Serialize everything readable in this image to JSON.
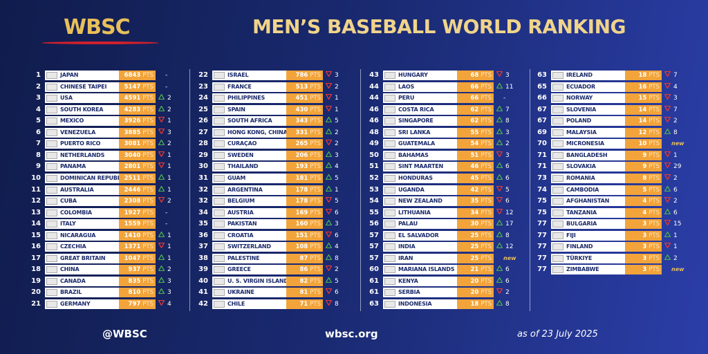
{
  "header": {
    "logo": "WBSC",
    "title": "MEN’S BASEBALL WORLD RANKING"
  },
  "pts_label": "PTS",
  "trend_colors": {
    "up": "#4caf50",
    "down": "#e53935"
  },
  "table": {
    "columns": [
      {
        "rows": [
          {
            "rank": 1,
            "country": "JAPAN",
            "points": 6843,
            "change": "-"
          },
          {
            "rank": 2,
            "country": "CHINESE TAIPEI",
            "points": 5147,
            "change": "-"
          },
          {
            "rank": 3,
            "country": "USA",
            "points": 4591,
            "trend": "up",
            "change": 2
          },
          {
            "rank": 4,
            "country": "SOUTH KOREA",
            "points": 4283,
            "trend": "up",
            "change": 2
          },
          {
            "rank": 5,
            "country": "MEXICO",
            "points": 3926,
            "trend": "down",
            "change": 1
          },
          {
            "rank": 6,
            "country": "VENEZUELA",
            "points": 3885,
            "trend": "down",
            "change": 3
          },
          {
            "rank": 7,
            "country": "PUERTO RICO",
            "points": 3081,
            "trend": "up",
            "change": 2
          },
          {
            "rank": 8,
            "country": "NETHERLANDS",
            "points": 3040,
            "trend": "down",
            "change": 1
          },
          {
            "rank": 9,
            "country": "PANAMA",
            "points": 2801,
            "trend": "down",
            "change": 1
          },
          {
            "rank": 10,
            "country": "DOMINICAN REPUBLIC",
            "points": 2511,
            "trend": "up",
            "change": 1
          },
          {
            "rank": 11,
            "country": "AUSTRALIA",
            "points": 2446,
            "trend": "up",
            "change": 1
          },
          {
            "rank": 12,
            "country": "CUBA",
            "points": 2308,
            "trend": "down",
            "change": 2
          },
          {
            "rank": 13,
            "country": "COLOMBIA",
            "points": 1927,
            "change": "-"
          },
          {
            "rank": 14,
            "country": "ITALY",
            "points": 1559,
            "change": "-"
          },
          {
            "rank": 15,
            "country": "NICARAGUA",
            "points": 1410,
            "trend": "up",
            "change": 1
          },
          {
            "rank": 16,
            "country": "CZECHIA",
            "points": 1371,
            "trend": "down",
            "change": 1
          },
          {
            "rank": 17,
            "country": "GREAT BRITAIN",
            "points": 1047,
            "trend": "up",
            "change": 1
          },
          {
            "rank": 18,
            "country": "CHINA",
            "points": 937,
            "trend": "up",
            "change": 2
          },
          {
            "rank": 19,
            "country": "CANADA",
            "points": 835,
            "trend": "up",
            "change": 3
          },
          {
            "rank": 20,
            "country": "BRAZIL",
            "points": 810,
            "trend": "up",
            "change": 3
          },
          {
            "rank": 21,
            "country": "GERMANY",
            "points": 797,
            "trend": "down",
            "change": 4
          }
        ]
      },
      {
        "rows": [
          {
            "rank": 22,
            "country": "ISRAEL",
            "points": 786,
            "trend": "down",
            "change": 3
          },
          {
            "rank": 23,
            "country": "FRANCE",
            "points": 513,
            "trend": "down",
            "change": 2
          },
          {
            "rank": 24,
            "country": "PHILIPPINES",
            "points": 451,
            "trend": "down",
            "change": 1
          },
          {
            "rank": 25,
            "country": "SPAIN",
            "points": 430,
            "trend": "down",
            "change": 1
          },
          {
            "rank": 26,
            "country": "SOUTH AFRICA",
            "points": 343,
            "trend": "up",
            "change": 5
          },
          {
            "rank": 27,
            "country": "HONG KONG, CHINA",
            "points": 331,
            "trend": "up",
            "change": 2
          },
          {
            "rank": 28,
            "country": "CURAÇAO",
            "points": 265,
            "trend": "down",
            "change": 2
          },
          {
            "rank": 29,
            "country": "SWEDEN",
            "points": 206,
            "trend": "up",
            "change": 3
          },
          {
            "rank": 30,
            "country": "THAILAND",
            "points": 193,
            "trend": "up",
            "change": 4
          },
          {
            "rank": 31,
            "country": "GUAM",
            "points": 181,
            "trend": "up",
            "change": 5
          },
          {
            "rank": 32,
            "country": "ARGENTINA",
            "points": 178,
            "trend": "up",
            "change": 1
          },
          {
            "rank": 32,
            "country": "BELGIUM",
            "points": 178,
            "trend": "down",
            "change": 5
          },
          {
            "rank": 34,
            "country": "AUSTRIA",
            "points": 169,
            "trend": "down",
            "change": 6
          },
          {
            "rank": 35,
            "country": "PAKISTAN",
            "points": 160,
            "trend": "up",
            "change": 3
          },
          {
            "rank": 36,
            "country": "CROATIA",
            "points": 151,
            "trend": "down",
            "change": 6
          },
          {
            "rank": 37,
            "country": "SWITZERLAND",
            "points": 108,
            "trend": "up",
            "change": 4
          },
          {
            "rank": 38,
            "country": "PALESTINE",
            "points": 87,
            "trend": "up",
            "change": 8
          },
          {
            "rank": 39,
            "country": "GREECE",
            "points": 86,
            "trend": "down",
            "change": 2
          },
          {
            "rank": 40,
            "country": "U. S. VIRGIN ISLANDS",
            "points": 82,
            "trend": "up",
            "change": 5
          },
          {
            "rank": 41,
            "country": "UKRAINE",
            "points": 81,
            "trend": "down",
            "change": 6
          },
          {
            "rank": 42,
            "country": "CHILE",
            "points": 71,
            "trend": "down",
            "change": 8
          }
        ]
      },
      {
        "rows": [
          {
            "rank": 43,
            "country": "HUNGARY",
            "points": 68,
            "trend": "down",
            "change": 3
          },
          {
            "rank": 44,
            "country": "LAOS",
            "points": 66,
            "trend": "up",
            "change": 11
          },
          {
            "rank": 44,
            "country": "PERU",
            "points": 66,
            "change": "-"
          },
          {
            "rank": 46,
            "country": "COSTA RICA",
            "points": 62,
            "trend": "up",
            "change": 7
          },
          {
            "rank": 46,
            "country": "SINGAPORE",
            "points": 62,
            "trend": "up",
            "change": 8
          },
          {
            "rank": 48,
            "country": "SRI LANKA",
            "points": 55,
            "trend": "up",
            "change": 3
          },
          {
            "rank": 49,
            "country": "GUATEMALA",
            "points": 54,
            "trend": "up",
            "change": 2
          },
          {
            "rank": 50,
            "country": "BAHAMAS",
            "points": 51,
            "trend": "down",
            "change": 3
          },
          {
            "rank": 51,
            "country": "SINT MAARTEN",
            "points": 46,
            "trend": "up",
            "change": 6
          },
          {
            "rank": 52,
            "country": "HONDURAS",
            "points": 45,
            "trend": "up",
            "change": 6
          },
          {
            "rank": 53,
            "country": "UGANDA",
            "points": 42,
            "trend": "down",
            "change": 5
          },
          {
            "rank": 54,
            "country": "NEW ZEALAND",
            "points": 35,
            "trend": "down",
            "change": 6
          },
          {
            "rank": 55,
            "country": "LITHUANIA",
            "points": 34,
            "trend": "down",
            "change": 12
          },
          {
            "rank": 56,
            "country": "PALAU",
            "points": 30,
            "trend": "up",
            "change": 17
          },
          {
            "rank": 57,
            "country": "EL SALVADOR",
            "points": 25,
            "trend": "up",
            "change": 8
          },
          {
            "rank": 57,
            "country": "INDIA",
            "points": 25,
            "trend": "up",
            "change": 12
          },
          {
            "rank": 57,
            "country": "IRAN",
            "points": 25,
            "change": "new"
          },
          {
            "rank": 60,
            "country": "MARIANA ISLANDS",
            "points": 21,
            "trend": "up",
            "change": 6
          },
          {
            "rank": 61,
            "country": "KENYA",
            "points": 20,
            "trend": "up",
            "change": 6
          },
          {
            "rank": 61,
            "country": "SERBIA",
            "points": 20,
            "trend": "down",
            "change": 2
          },
          {
            "rank": 63,
            "country": "INDONESIA",
            "points": 18,
            "trend": "up",
            "change": 8
          }
        ]
      },
      {
        "rows": [
          {
            "rank": 63,
            "country": "IRELAND",
            "points": 18,
            "trend": "down",
            "change": 7
          },
          {
            "rank": 65,
            "country": "ECUADOR",
            "points": 16,
            "trend": "down",
            "change": 4
          },
          {
            "rank": 66,
            "country": "NORWAY",
            "points": 15,
            "trend": "down",
            "change": 3
          },
          {
            "rank": 67,
            "country": "SLOVENIA",
            "points": 14,
            "trend": "down",
            "change": 7
          },
          {
            "rank": 67,
            "country": "POLAND",
            "points": 14,
            "trend": "down",
            "change": 2
          },
          {
            "rank": 69,
            "country": "MALAYSIA",
            "points": 12,
            "trend": "up",
            "change": 8
          },
          {
            "rank": 70,
            "country": "MICRONESIA",
            "points": 10,
            "change": "new"
          },
          {
            "rank": 71,
            "country": "BANGLADESH",
            "points": 9,
            "trend": "down",
            "change": 1
          },
          {
            "rank": 71,
            "country": "SLOVAKIA",
            "points": 9,
            "trend": "down",
            "change": 29
          },
          {
            "rank": 73,
            "country": "ROMANIA",
            "points": 8,
            "trend": "down",
            "change": 2
          },
          {
            "rank": 74,
            "country": "CAMBODIA",
            "points": 5,
            "trend": "up",
            "change": 6
          },
          {
            "rank": 75,
            "country": "AFGHANISTAN",
            "points": 4,
            "trend": "down",
            "change": 2
          },
          {
            "rank": 75,
            "country": "TANZANIA",
            "points": 4,
            "trend": "up",
            "change": 6
          },
          {
            "rank": 77,
            "country": "BULGARIA",
            "points": 3,
            "trend": "down",
            "change": 15
          },
          {
            "rank": 77,
            "country": "FIJI",
            "points": 3,
            "trend": "up",
            "change": 1
          },
          {
            "rank": 77,
            "country": "FINLAND",
            "points": 3,
            "trend": "down",
            "change": 1
          },
          {
            "rank": 77,
            "country": "TÜRKIYE",
            "points": 3,
            "trend": "up",
            "change": 2
          },
          {
            "rank": 77,
            "country": "ZIMBABWE",
            "points": 3,
            "change": "new"
          }
        ]
      }
    ]
  },
  "footer": {
    "handle": "@WBSC",
    "website": "wbsc.org",
    "date": "as of 23 July 2025"
  }
}
